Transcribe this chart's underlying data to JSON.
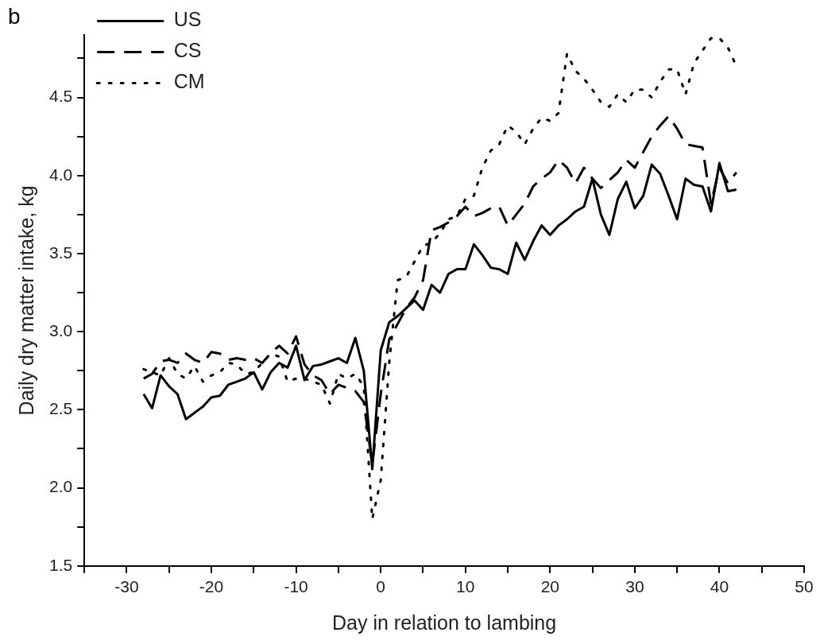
{
  "chart_data": {
    "type": "line",
    "xlabel": "Day in relation to lambing",
    "ylabel": "Daily dry matter intake, kg",
    "annotations": [
      "b"
    ],
    "x": [
      -28,
      -27,
      -26,
      -25,
      -24,
      -23,
      -22,
      -21,
      -20,
      -19,
      -18,
      -17,
      -16,
      -15,
      -14,
      -13,
      -12,
      -11,
      -10,
      -9,
      -8,
      -7,
      -6,
      -5,
      -4,
      -3,
      -2,
      -1,
      0,
      1,
      2,
      3,
      4,
      5,
      6,
      7,
      8,
      9,
      10,
      11,
      12,
      13,
      14,
      15,
      16,
      17,
      18,
      19,
      20,
      21,
      22,
      23,
      24,
      25,
      26,
      27,
      28,
      29,
      30,
      31,
      32,
      33,
      34,
      35,
      36,
      37,
      38,
      39,
      40,
      41,
      42
    ],
    "series": [
      {
        "name": "US",
        "color": "#000000",
        "line_style": "solid",
        "values": [
          2.6,
          2.51,
          2.72,
          2.65,
          2.6,
          2.44,
          2.48,
          2.52,
          2.58,
          2.59,
          2.66,
          2.68,
          2.7,
          2.74,
          2.63,
          2.74,
          2.8,
          2.77,
          2.91,
          2.69,
          2.78,
          2.79,
          2.81,
          2.83,
          2.8,
          2.96,
          2.75,
          2.12,
          2.88,
          3.06,
          3.1,
          3.15,
          3.2,
          3.14,
          3.3,
          3.25,
          3.37,
          3.4,
          3.4,
          3.56,
          3.49,
          3.41,
          3.4,
          3.37,
          3.57,
          3.46,
          3.58,
          3.68,
          3.62,
          3.68,
          3.72,
          3.77,
          3.8,
          3.98,
          3.75,
          3.62,
          3.85,
          3.96,
          3.79,
          3.87,
          4.07,
          4.01,
          3.87,
          3.72,
          3.98,
          3.94,
          3.93,
          3.77,
          4.08,
          3.9,
          3.91
        ]
      },
      {
        "name": "CS",
        "color": "#000000",
        "line_style": "dashed",
        "values": [
          2.7,
          2.73,
          2.81,
          2.82,
          2.8,
          2.86,
          2.82,
          2.8,
          2.87,
          2.86,
          2.82,
          2.83,
          2.82,
          2.83,
          2.8,
          2.86,
          2.91,
          2.86,
          2.97,
          2.79,
          2.72,
          2.69,
          2.6,
          2.66,
          2.64,
          2.62,
          2.55,
          2.15,
          2.6,
          2.95,
          3.05,
          3.15,
          3.22,
          3.33,
          3.65,
          3.67,
          3.7,
          3.74,
          3.8,
          3.74,
          3.76,
          3.79,
          3.8,
          3.68,
          3.75,
          3.82,
          3.93,
          3.98,
          4.02,
          4.1,
          4.05,
          3.95,
          4.05,
          3.98,
          3.92,
          3.97,
          4.02,
          4.1,
          4.05,
          4.15,
          4.25,
          4.32,
          4.38,
          4.3,
          4.2,
          4.19,
          4.18,
          3.82,
          4.05,
          3.95,
          4.02
        ]
      },
      {
        "name": "CM",
        "color": "#000000",
        "line_style": "dotted",
        "values": [
          2.76,
          2.74,
          2.72,
          2.83,
          2.73,
          2.7,
          2.78,
          2.68,
          2.72,
          2.74,
          2.8,
          2.79,
          2.73,
          2.74,
          2.8,
          2.86,
          2.84,
          2.68,
          2.7,
          2.7,
          2.68,
          2.66,
          2.54,
          2.73,
          2.7,
          2.73,
          2.65,
          1.8,
          2.05,
          2.8,
          3.33,
          3.35,
          3.45,
          3.55,
          3.57,
          3.63,
          3.72,
          3.74,
          3.85,
          3.87,
          4.05,
          4.16,
          4.2,
          4.32,
          4.28,
          4.2,
          4.3,
          4.37,
          4.35,
          4.4,
          4.78,
          4.67,
          4.62,
          4.55,
          4.47,
          4.44,
          4.52,
          4.47,
          4.55,
          4.55,
          4.5,
          4.6,
          4.68,
          4.68,
          4.52,
          4.72,
          4.8,
          4.88,
          4.88,
          4.82,
          4.7
        ]
      }
    ],
    "xlim": [
      -35,
      50
    ],
    "xticks": [
      {
        "value": -35,
        "label": null
      },
      -30,
      {
        "value": -25,
        "label": null
      },
      -20,
      {
        "value": -15,
        "label": null
      },
      -10,
      {
        "value": -5,
        "label": null
      },
      0,
      {
        "value": 5,
        "label": null
      },
      10,
      {
        "value": 15,
        "label": null
      },
      20,
      {
        "value": 25,
        "label": null
      },
      30,
      {
        "value": 35,
        "label": null
      },
      40,
      {
        "value": 45,
        "label": null
      },
      50
    ],
    "ylim": [
      1.5,
      4.9
    ],
    "yticks": [
      1.5,
      {
        "value": 1.75,
        "label": null
      },
      {
        "value": 2,
        "label": "2.0"
      },
      {
        "value": 2.25,
        "label": null
      },
      2.5,
      {
        "value": 2.75,
        "label": null
      },
      {
        "value": 3,
        "label": "3.0"
      },
      {
        "value": 3.25,
        "label": null
      },
      3.5,
      {
        "value": 3.75,
        "label": null
      },
      {
        "value": 4,
        "label": "4.0"
      },
      {
        "value": 4.25,
        "label": null
      },
      4.5,
      {
        "value": 4.75,
        "label": null
      }
    ],
    "grid": false,
    "legend": "top left",
    "marker": "none"
  }
}
